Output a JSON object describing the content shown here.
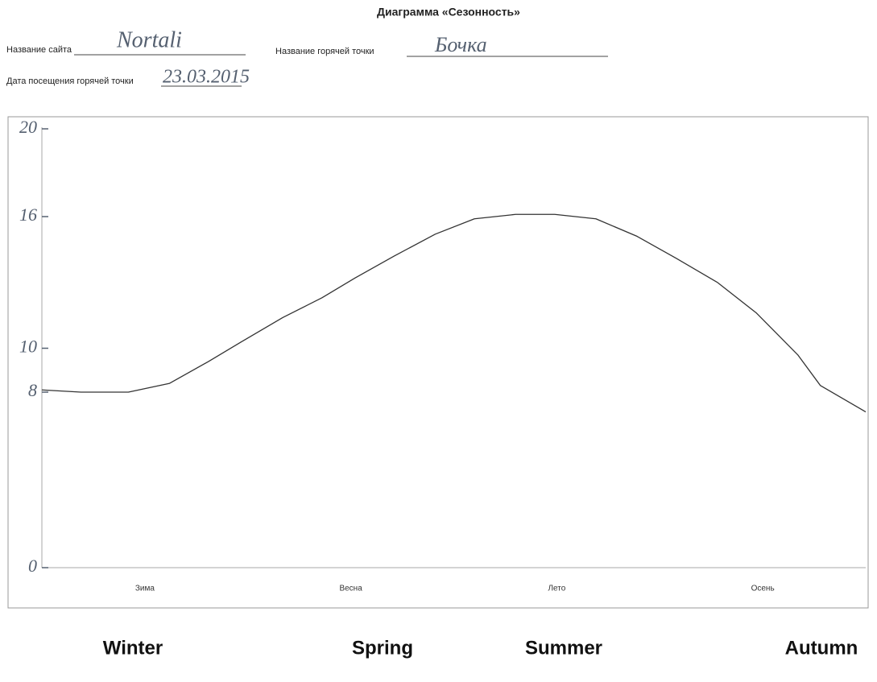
{
  "form": {
    "site_label": "Название сайта",
    "site_value": "Nortali",
    "point_label": "Название горячей точки",
    "point_value": "Бочка",
    "date_label": "Дата посещения горячей точки",
    "date_value": "23.03.2015"
  },
  "chart_data": {
    "type": "line",
    "title": "Диаграмма «Сезонность»",
    "categories": [
      "Зима",
      "Весна",
      "Лето",
      "Осень"
    ],
    "x": [
      0,
      0.19,
      0.42,
      0.62,
      0.81,
      0.97,
      1.17,
      1.36,
      1.52,
      1.71,
      1.91,
      2.1,
      2.3,
      2.49,
      2.69,
      2.89,
      3.08,
      3.28,
      3.47,
      3.67,
      3.78,
      4
    ],
    "values": [
      8.1,
      8.0,
      8.0,
      8.4,
      9.4,
      10.3,
      11.4,
      12.3,
      13.2,
      14.2,
      15.2,
      15.9,
      16.1,
      16.1,
      15.9,
      15.1,
      14.1,
      13.0,
      11.6,
      9.7,
      8.3,
      7.1
    ],
    "color": "#333333",
    "xlim": [
      0,
      4
    ],
    "ylim": [
      0,
      20
    ],
    "yticks": [
      0,
      8,
      10,
      16,
      20
    ]
  },
  "season_labels_en": [
    "Winter",
    "Spring",
    "Summer",
    "Autumn"
  ]
}
